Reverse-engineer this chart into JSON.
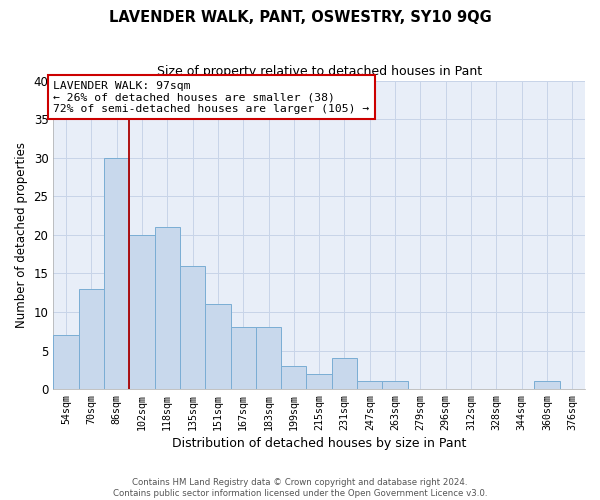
{
  "title": "LAVENDER WALK, PANT, OSWESTRY, SY10 9QG",
  "subtitle": "Size of property relative to detached houses in Pant",
  "xlabel": "Distribution of detached houses by size in Pant",
  "ylabel": "Number of detached properties",
  "bar_labels": [
    "54sqm",
    "70sqm",
    "86sqm",
    "102sqm",
    "118sqm",
    "135sqm",
    "151sqm",
    "167sqm",
    "183sqm",
    "199sqm",
    "215sqm",
    "231sqm",
    "247sqm",
    "263sqm",
    "279sqm",
    "296sqm",
    "312sqm",
    "328sqm",
    "344sqm",
    "360sqm",
    "376sqm"
  ],
  "bar_values": [
    7,
    13,
    30,
    20,
    21,
    16,
    11,
    8,
    8,
    3,
    2,
    4,
    1,
    1,
    0,
    0,
    0,
    0,
    0,
    1,
    0
  ],
  "bar_color": "#c8d8ec",
  "bar_edge_color": "#7aadd4",
  "vline_index": 2,
  "vline_color": "#aa0000",
  "annotation_text": "LAVENDER WALK: 97sqm\n← 26% of detached houses are smaller (38)\n72% of semi-detached houses are larger (105) →",
  "annotation_box_color": "#ffffff",
  "annotation_box_edge": "#cc0000",
  "ylim": [
    0,
    40
  ],
  "yticks": [
    0,
    5,
    10,
    15,
    20,
    25,
    30,
    35,
    40
  ],
  "grid_color": "#c8d4e8",
  "bg_color": "#e8eef8",
  "footer_line1": "Contains HM Land Registry data © Crown copyright and database right 2024.",
  "footer_line2": "Contains public sector information licensed under the Open Government Licence v3.0."
}
